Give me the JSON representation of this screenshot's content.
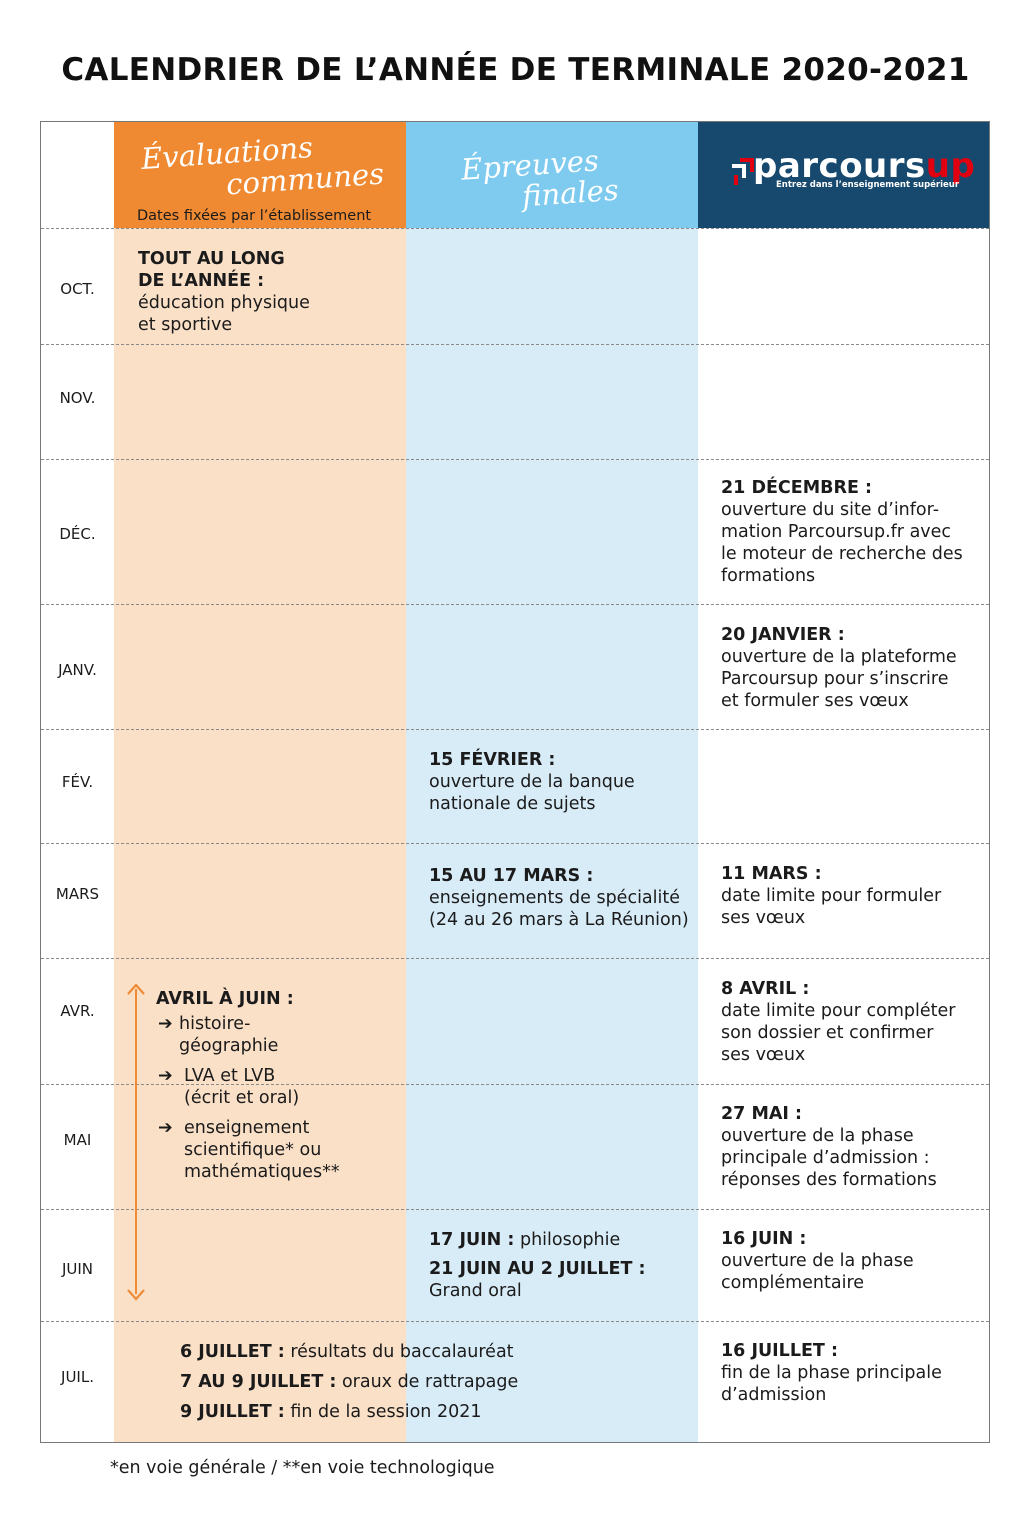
{
  "title": "CALENDRIER DE L’ANNÉE DE TERMINALE 2020-2021",
  "columns": {
    "evaluations": {
      "line1": "Évaluations",
      "line2": "communes",
      "subtitle": "Dates fixées par l’établissement"
    },
    "epreuves": {
      "line1": "Épreuves",
      "line2": "finales"
    },
    "parcoursup": {
      "logo_main": "parcours",
      "logo_up": "up",
      "tagline": "Entrez dans l’enseignement supérieur"
    }
  },
  "months": [
    "OCT.",
    "NOV.",
    "DÉC.",
    "JANV.",
    "FÉV.",
    "MARS",
    "AVR.",
    "MAI",
    "JUIN",
    "JUIL."
  ],
  "evaluations": {
    "oct_title1": "TOUT AU LONG",
    "oct_title2": "DE L’ANNÉE :",
    "oct_text1": "éducation physique",
    "oct_text2": "et sportive",
    "avril_title": "AVRIL À JUIN :",
    "item1_a": "histoire-",
    "item1_b": "géographie",
    "item2_a": "LVA et LVB",
    "item2_b": "(écrit et oral)",
    "item3_a": "enseignement",
    "item3_b": "scientifique* ou",
    "item3_c": "mathématiques**"
  },
  "epreuves": {
    "fev_title": "15 FÉVRIER :",
    "fev_text1": "ouverture de la banque",
    "fev_text2": "nationale de sujets",
    "mars_title": "15 AU 17 MARS :",
    "mars_text1": "enseignements de spécialité",
    "mars_text2": "(24 au 26 mars à La Réunion)",
    "juin1_title": "17 JUIN :",
    "juin1_text": " philosophie",
    "juin2_title": "21 JUIN AU 2 JUILLET :",
    "juin2_text": "Grand oral"
  },
  "juillet": {
    "l1_title": "6 JUILLET :",
    "l1_text": " résultats du baccalauréat",
    "l2_title": "7 AU 9 JUILLET :",
    "l2_text": " oraux de rattrapage",
    "l3_title": "9 JUILLET :",
    "l3_text": " fin de la session 2021"
  },
  "parcoursup": {
    "dec_title": "21 DÉCEMBRE :",
    "dec_text1": "ouverture du site d’infor-",
    "dec_text2": "mation Parcoursup.fr avec",
    "dec_text3": "le moteur de recherche des",
    "dec_text4": "formations",
    "janv_title": "20 JANVIER :",
    "janv_text1": "ouverture de la plateforme",
    "janv_text2": "Parcoursup pour s’inscrire",
    "janv_text3": "et formuler ses vœux",
    "mars_title": "11 MARS :",
    "mars_text1": "date limite pour formuler",
    "mars_text2": "ses vœux",
    "avr_title": "8 AVRIL :",
    "avr_text1": "date limite pour compléter",
    "avr_text2": "son dossier et confirmer",
    "avr_text3": "ses vœux",
    "mai_title": "27 MAI :",
    "mai_text1": "ouverture de la phase",
    "mai_text2": "principale d’admission :",
    "mai_text3": "réponses des formations",
    "juin_title": "16 JUIN :",
    "juin_text1": "ouverture de la phase",
    "juin_text2": "complémentaire",
    "juil_title": "16 JUILLET :",
    "juil_text1": "fin de la phase principale",
    "juil_text2": "d’admission"
  },
  "footnote": "*en voie générale / **en voie technologique",
  "colors": {
    "orange_header": "#f08a32",
    "orange_light": "#fbe0c8",
    "blue_header": "#7fcbef",
    "blue_light": "#d8ecf8",
    "navy_header": "#17496e",
    "parcoursup_red": "#e1000f"
  }
}
